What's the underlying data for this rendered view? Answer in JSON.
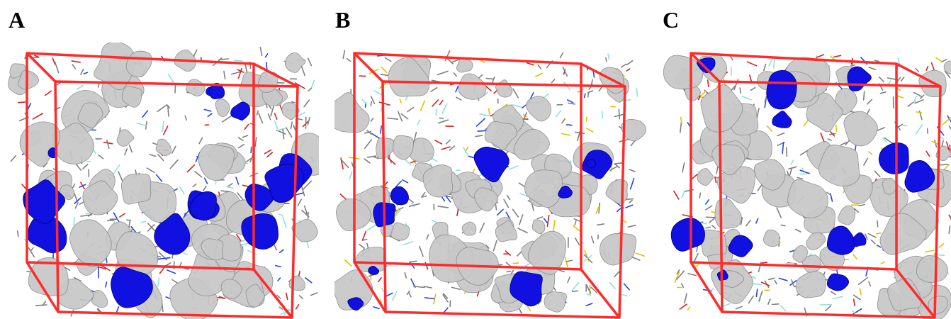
{
  "panels": [
    {
      "label": "A",
      "seed": 11,
      "cavities": 14
    },
    {
      "label": "B",
      "seed": 29,
      "cavities": 9
    },
    {
      "label": "C",
      "seed": 47,
      "cavities": 12
    }
  ],
  "colors": {
    "box_edge": "#ff2a2a",
    "surface_fill": "#c8c8c8",
    "surface_stroke": "#8a8a8a",
    "cavity": "#1010e0",
    "stick_gray": "#7f7f7f",
    "stick_red": "#d81e1e",
    "stick_blue": "#2244ee",
    "stick_cyan": "#8fe0e0",
    "stick_yellow": "#e0c000"
  }
}
